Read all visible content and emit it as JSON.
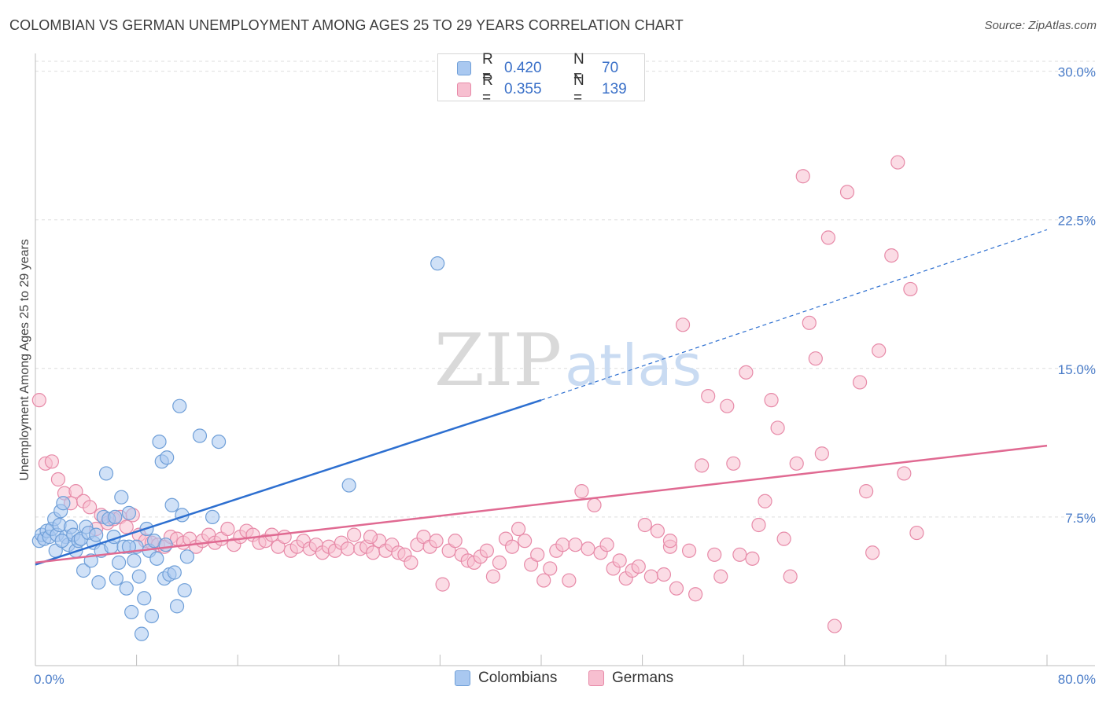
{
  "header": {
    "title": "COLOMBIAN VS GERMAN UNEMPLOYMENT AMONG AGES 25 TO 29 YEARS CORRELATION CHART",
    "source": "Source: ZipAtlas.com"
  },
  "watermark": {
    "zip": "ZIP",
    "atlas": "atlas"
  },
  "legend": {
    "rows": [
      {
        "r_label": "R =",
        "r_value": "0.420",
        "n_label": "N =",
        "n_value": "70",
        "color": "#a9c8f0",
        "border": "#6f9fd8"
      },
      {
        "r_label": "R =",
        "r_value": "0.355",
        "n_label": "N =",
        "n_value": "139",
        "color": "#f7bfd0",
        "border": "#e78aa8"
      }
    ]
  },
  "bottom_legend": {
    "items": [
      {
        "label": "Colombians",
        "color": "#a9c8f0",
        "border": "#6f9fd8"
      },
      {
        "label": "Germans",
        "color": "#f7bfd0",
        "border": "#e78aa8"
      }
    ]
  },
  "chart_data": {
    "type": "scatter",
    "title": "COLOMBIAN VS GERMAN UNEMPLOYMENT AMONG AGES 25 TO 29 YEARS CORRELATION CHART",
    "ylabel": "Unemployment Among Ages 25 to 29 years",
    "xlabel": "",
    "xlim": [
      0,
      80
    ],
    "ylim": [
      0,
      30.5
    ],
    "x_tick_labels": [
      "0.0%",
      "80.0%"
    ],
    "y_ticks": [
      7.5,
      15.0,
      22.5,
      30.0
    ],
    "y_tick_labels": [
      "7.5%",
      "15.0%",
      "22.5%",
      "30.0%"
    ],
    "grid": true,
    "legend_position": "top-center",
    "series": [
      {
        "name": "Colombians",
        "color": "#6f9fd8",
        "fill": "#a9c8f0",
        "trend": {
          "x": [
            0,
            40
          ],
          "y": [
            5.1,
            13.4
          ],
          "dashed_to": [
            80,
            22.0
          ],
          "color": "#2d6fd0"
        },
        "points": [
          [
            0.3,
            6.3
          ],
          [
            0.5,
            6.6
          ],
          [
            0.7,
            6.4
          ],
          [
            0.9,
            6.8
          ],
          [
            1.1,
            6.5
          ],
          [
            1.3,
            6.9
          ],
          [
            1.5,
            7.4
          ],
          [
            1.7,
            6.6
          ],
          [
            1.9,
            7.1
          ],
          [
            1.6,
            5.8
          ],
          [
            2.0,
            7.8
          ],
          [
            2.2,
            8.2
          ],
          [
            2.4,
            6.5
          ],
          [
            2.6,
            6.1
          ],
          [
            2.8,
            7.0
          ],
          [
            3.0,
            6.6
          ],
          [
            3.2,
            5.8
          ],
          [
            3.4,
            6.3
          ],
          [
            3.6,
            6.4
          ],
          [
            3.8,
            4.8
          ],
          [
            4.0,
            7.0
          ],
          [
            4.2,
            6.7
          ],
          [
            4.4,
            5.3
          ],
          [
            4.6,
            6.2
          ],
          [
            4.8,
            6.6
          ],
          [
            5.0,
            4.2
          ],
          [
            5.2,
            5.8
          ],
          [
            5.4,
            7.5
          ],
          [
            5.6,
            9.7
          ],
          [
            5.8,
            7.4
          ],
          [
            6.0,
            6.0
          ],
          [
            6.2,
            6.5
          ],
          [
            6.4,
            4.4
          ],
          [
            6.6,
            5.2
          ],
          [
            6.8,
            8.5
          ],
          [
            7.0,
            6.0
          ],
          [
            7.2,
            3.9
          ],
          [
            7.4,
            7.7
          ],
          [
            7.6,
            2.7
          ],
          [
            7.8,
            5.3
          ],
          [
            8.0,
            6.0
          ],
          [
            8.2,
            4.5
          ],
          [
            8.4,
            1.6
          ],
          [
            8.6,
            3.4
          ],
          [
            8.8,
            6.9
          ],
          [
            9.0,
            5.8
          ],
          [
            9.2,
            2.5
          ],
          [
            9.4,
            6.3
          ],
          [
            9.6,
            5.4
          ],
          [
            9.8,
            11.3
          ],
          [
            10.0,
            10.3
          ],
          [
            10.2,
            4.4
          ],
          [
            10.4,
            10.5
          ],
          [
            10.6,
            4.6
          ],
          [
            10.8,
            8.1
          ],
          [
            11.0,
            4.7
          ],
          [
            11.2,
            3.0
          ],
          [
            11.4,
            13.1
          ],
          [
            11.6,
            7.6
          ],
          [
            11.8,
            3.8
          ],
          [
            12.0,
            5.5
          ],
          [
            13.0,
            11.6
          ],
          [
            14.0,
            7.5
          ],
          [
            14.5,
            11.3
          ],
          [
            24.8,
            9.1
          ],
          [
            31.8,
            20.3
          ],
          [
            7.4,
            6.0
          ],
          [
            2.1,
            6.3
          ],
          [
            6.3,
            7.5
          ],
          [
            10.3,
            6.1
          ]
        ]
      },
      {
        "name": "Germans",
        "color": "#e78aa8",
        "fill": "#f7bfd0",
        "trend": {
          "x": [
            0,
            80
          ],
          "y": [
            5.2,
            11.1
          ],
          "color": "#e06a92"
        },
        "points": [
          [
            0.3,
            13.4
          ],
          [
            0.8,
            10.2
          ],
          [
            1.3,
            10.3
          ],
          [
            1.8,
            9.4
          ],
          [
            2.3,
            8.7
          ],
          [
            2.8,
            8.2
          ],
          [
            3.2,
            8.8
          ],
          [
            3.8,
            8.3
          ],
          [
            4.3,
            8.0
          ],
          [
            4.8,
            6.9
          ],
          [
            5.2,
            7.6
          ],
          [
            5.7,
            7.2
          ],
          [
            6.2,
            7.4
          ],
          [
            6.7,
            7.5
          ],
          [
            7.2,
            7.0
          ],
          [
            7.7,
            7.6
          ],
          [
            8.2,
            6.6
          ],
          [
            8.7,
            6.3
          ],
          [
            9.2,
            6.2
          ],
          [
            9.7,
            6.1
          ],
          [
            10.2,
            6.0
          ],
          [
            10.7,
            6.5
          ],
          [
            11.2,
            6.4
          ],
          [
            11.7,
            6.2
          ],
          [
            12.2,
            6.4
          ],
          [
            12.7,
            6.0
          ],
          [
            13.2,
            6.3
          ],
          [
            13.7,
            6.6
          ],
          [
            14.2,
            6.2
          ],
          [
            14.7,
            6.4
          ],
          [
            15.2,
            6.9
          ],
          [
            15.7,
            6.1
          ],
          [
            16.2,
            6.5
          ],
          [
            16.7,
            6.8
          ],
          [
            17.2,
            6.6
          ],
          [
            17.7,
            6.2
          ],
          [
            18.2,
            6.3
          ],
          [
            18.7,
            6.6
          ],
          [
            19.2,
            6.0
          ],
          [
            19.7,
            6.5
          ],
          [
            20.2,
            5.8
          ],
          [
            20.7,
            6.0
          ],
          [
            21.2,
            6.3
          ],
          [
            21.7,
            5.9
          ],
          [
            22.2,
            6.1
          ],
          [
            22.7,
            5.7
          ],
          [
            23.2,
            6.0
          ],
          [
            23.7,
            5.8
          ],
          [
            24.2,
            6.2
          ],
          [
            24.7,
            5.9
          ],
          [
            25.2,
            6.6
          ],
          [
            25.7,
            5.9
          ],
          [
            26.2,
            6.0
          ],
          [
            26.7,
            5.7
          ],
          [
            27.2,
            6.3
          ],
          [
            27.7,
            5.8
          ],
          [
            28.2,
            6.1
          ],
          [
            28.7,
            5.7
          ],
          [
            29.2,
            5.6
          ],
          [
            29.7,
            5.2
          ],
          [
            30.2,
            6.1
          ],
          [
            30.7,
            6.5
          ],
          [
            31.2,
            6.0
          ],
          [
            31.7,
            6.3
          ],
          [
            32.2,
            4.1
          ],
          [
            32.7,
            5.8
          ],
          [
            33.2,
            6.3
          ],
          [
            33.7,
            5.6
          ],
          [
            34.2,
            5.3
          ],
          [
            34.7,
            5.2
          ],
          [
            35.2,
            5.5
          ],
          [
            35.7,
            5.8
          ],
          [
            36.2,
            4.5
          ],
          [
            36.7,
            5.2
          ],
          [
            37.2,
            6.4
          ],
          [
            37.7,
            6.0
          ],
          [
            38.2,
            6.9
          ],
          [
            38.7,
            6.3
          ],
          [
            39.2,
            5.1
          ],
          [
            39.7,
            5.6
          ],
          [
            40.2,
            4.3
          ],
          [
            40.7,
            4.9
          ],
          [
            41.2,
            5.8
          ],
          [
            41.7,
            6.1
          ],
          [
            42.2,
            4.3
          ],
          [
            42.7,
            6.1
          ],
          [
            43.2,
            8.8
          ],
          [
            43.7,
            5.9
          ],
          [
            44.2,
            8.1
          ],
          [
            44.7,
            5.7
          ],
          [
            45.2,
            6.1
          ],
          [
            45.7,
            4.9
          ],
          [
            46.2,
            5.3
          ],
          [
            46.7,
            4.4
          ],
          [
            47.2,
            4.8
          ],
          [
            47.7,
            5.0
          ],
          [
            48.2,
            7.1
          ],
          [
            48.7,
            4.5
          ],
          [
            49.2,
            6.8
          ],
          [
            49.7,
            4.6
          ],
          [
            50.2,
            6.0
          ],
          [
            50.7,
            3.9
          ],
          [
            51.2,
            17.2
          ],
          [
            51.7,
            5.8
          ],
          [
            52.2,
            3.6
          ],
          [
            52.7,
            10.1
          ],
          [
            53.2,
            13.6
          ],
          [
            53.7,
            5.6
          ],
          [
            54.2,
            4.5
          ],
          [
            54.7,
            13.1
          ],
          [
            55.2,
            10.2
          ],
          [
            55.7,
            5.6
          ],
          [
            56.2,
            14.8
          ],
          [
            56.7,
            5.4
          ],
          [
            57.2,
            7.1
          ],
          [
            57.7,
            8.3
          ],
          [
            58.2,
            13.4
          ],
          [
            58.7,
            12.0
          ],
          [
            59.2,
            6.4
          ],
          [
            59.7,
            4.5
          ],
          [
            60.2,
            10.2
          ],
          [
            60.7,
            24.7
          ],
          [
            61.2,
            17.3
          ],
          [
            61.7,
            15.5
          ],
          [
            62.2,
            10.7
          ],
          [
            62.7,
            21.6
          ],
          [
            63.2,
            2.0
          ],
          [
            64.2,
            23.9
          ],
          [
            65.2,
            14.3
          ],
          [
            65.7,
            8.8
          ],
          [
            66.2,
            5.7
          ],
          [
            66.7,
            15.9
          ],
          [
            67.7,
            20.7
          ],
          [
            68.2,
            25.4
          ],
          [
            68.7,
            9.7
          ],
          [
            69.2,
            19.0
          ],
          [
            69.7,
            6.7
          ],
          [
            50.2,
            6.3
          ],
          [
            26.5,
            6.5
          ]
        ]
      }
    ]
  }
}
